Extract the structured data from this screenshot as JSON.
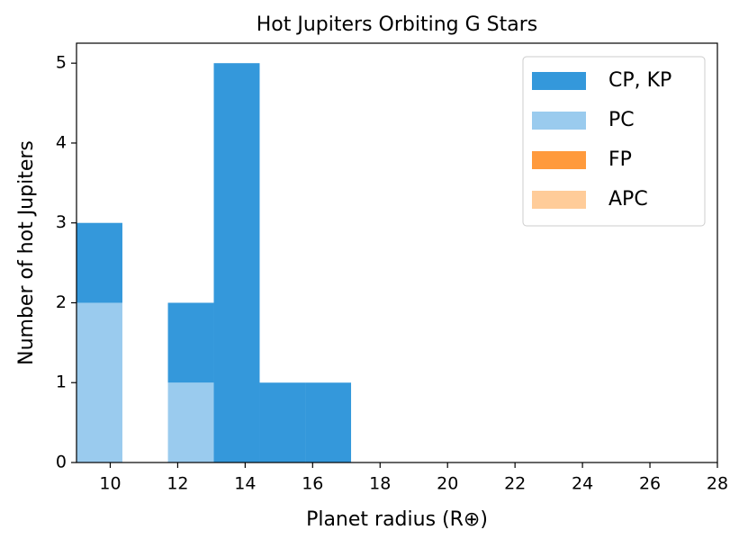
{
  "chart_data": {
    "type": "histogram",
    "title": "Hot Jupiters Orbiting G Stars",
    "xlabel": "Planet radius (R⊕)",
    "ylabel": "Number of hot Jupiters",
    "bins": [
      9,
      10.36,
      11.71,
      13.07,
      14.43,
      15.79,
      17.14,
      18.5,
      19.86,
      21.21,
      22.57,
      23.93,
      25.29,
      26.64,
      28
    ],
    "series": [
      {
        "name": "CP, KP",
        "color": "#3498db",
        "values": [
          1,
          0,
          1,
          5,
          1,
          1,
          0,
          0,
          0,
          0,
          0,
          0,
          0,
          0
        ]
      },
      {
        "name": "PC",
        "color": "#9acbee",
        "values": [
          2,
          0,
          1,
          0,
          0,
          0,
          0,
          0,
          0,
          0,
          0,
          0,
          0,
          0
        ]
      },
      {
        "name": "FP",
        "color": "#ff9a3c",
        "values": [
          0,
          0,
          0,
          0,
          0,
          0,
          0,
          0,
          0,
          0,
          0,
          0,
          0,
          0
        ]
      },
      {
        "name": "APC",
        "color": "#ffcc99",
        "values": [
          0,
          0,
          0,
          0,
          0,
          0,
          0,
          0,
          0,
          0,
          0,
          0,
          0,
          0
        ]
      }
    ],
    "stacked": true,
    "xlim": [
      9,
      28
    ],
    "xticks": [
      10,
      12,
      14,
      16,
      18,
      20,
      22,
      24,
      26,
      28
    ],
    "ylim": [
      0,
      5.25
    ],
    "yticks": [
      0,
      1,
      2,
      3,
      4,
      5
    ],
    "legend": "upper right"
  }
}
